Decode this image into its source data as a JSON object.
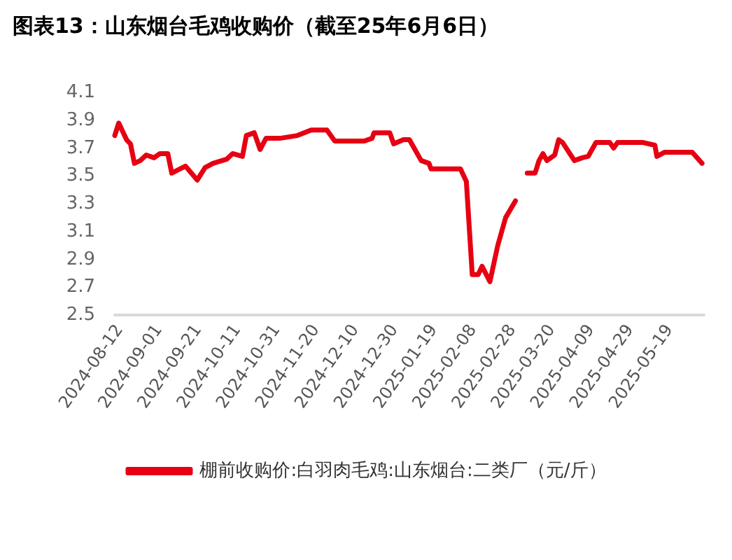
{
  "chart_data": {
    "type": "line",
    "title": "图表13：山东烟台毛鸡收购价（截至25年6月6日）",
    "x": [
      "2024-08-10",
      "2024-08-12",
      "2024-08-16",
      "2024-08-18",
      "2024-08-20",
      "2024-08-23",
      "2024-08-26",
      "2024-08-30",
      "2024-09-02",
      "2024-09-06",
      "2024-09-08",
      "2024-09-15",
      "2024-09-21",
      "2024-09-25",
      "2024-09-29",
      "2024-10-06",
      "2024-10-09",
      "2024-10-14",
      "2024-10-16",
      "2024-10-20",
      "2024-10-23",
      "2024-10-26",
      "2024-11-02",
      "2024-11-11",
      "2024-11-18",
      "2024-11-26",
      "2024-11-30",
      "2024-12-15",
      "2024-12-19",
      "2024-12-20",
      "2024-12-28",
      "2024-12-30",
      "2025-01-04",
      "2025-01-07",
      "2025-01-13",
      "2025-01-17",
      "2025-01-18",
      "2025-02-02",
      "2025-02-05",
      "2025-02-08",
      "2025-02-11",
      "2025-02-13",
      "2025-02-17",
      "2025-02-21",
      "2025-02-25",
      "2025-03-02",
      "2025-03-04",
      "2025-03-08",
      "2025-03-12",
      "2025-03-14",
      "2025-03-16",
      "2025-03-18",
      "2025-03-22",
      "2025-03-24",
      "2025-03-26",
      "2025-04-01",
      "2025-04-05",
      "2025-04-08",
      "2025-04-12",
      "2025-04-19",
      "2025-04-21",
      "2025-04-23",
      "2025-05-06",
      "2025-05-12",
      "2025-05-13",
      "2025-05-17",
      "2025-05-31",
      "2025-06-05"
    ],
    "series": [
      {
        "name": "棚前收购价:白羽肉毛鸡:山东烟台:二类厂（元/斤）",
        "color": "#e60012",
        "values": [
          3.79,
          3.88,
          3.76,
          3.73,
          3.59,
          3.61,
          3.65,
          3.63,
          3.66,
          3.66,
          3.52,
          3.57,
          3.47,
          3.56,
          3.59,
          3.62,
          3.66,
          3.64,
          3.79,
          3.81,
          3.69,
          3.77,
          3.77,
          3.79,
          3.83,
          3.83,
          3.75,
          3.75,
          3.77,
          3.81,
          3.81,
          3.73,
          3.76,
          3.76,
          3.61,
          3.59,
          3.55,
          3.55,
          3.46,
          2.79,
          2.79,
          2.85,
          2.74,
          3.0,
          3.2,
          3.32,
          null,
          3.52,
          3.52,
          3.61,
          3.66,
          3.61,
          3.65,
          3.76,
          3.74,
          3.61,
          3.63,
          3.64,
          3.74,
          3.74,
          3.7,
          3.74,
          3.74,
          3.72,
          3.64,
          3.67,
          3.67,
          3.59
        ]
      }
    ],
    "xlim": [
      "2024-08-10",
      "2025-06-06"
    ],
    "xticks": [
      "2024-08-12",
      "2024-09-01",
      "2024-09-21",
      "2024-10-11",
      "2024-10-31",
      "2024-11-20",
      "2024-12-10",
      "2024-12-30",
      "2025-01-19",
      "2025-02-08",
      "2025-02-28",
      "2025-03-20",
      "2025-04-09",
      "2025-04-29",
      "2025-05-19"
    ],
    "ylim": [
      2.5,
      4.1
    ],
    "yticks": [
      2.5,
      2.7,
      2.9,
      3.1,
      3.3,
      3.5,
      3.7,
      3.9,
      4.1
    ],
    "grid": false,
    "legend": "bottom",
    "marker": "none",
    "line_style": "solid"
  }
}
